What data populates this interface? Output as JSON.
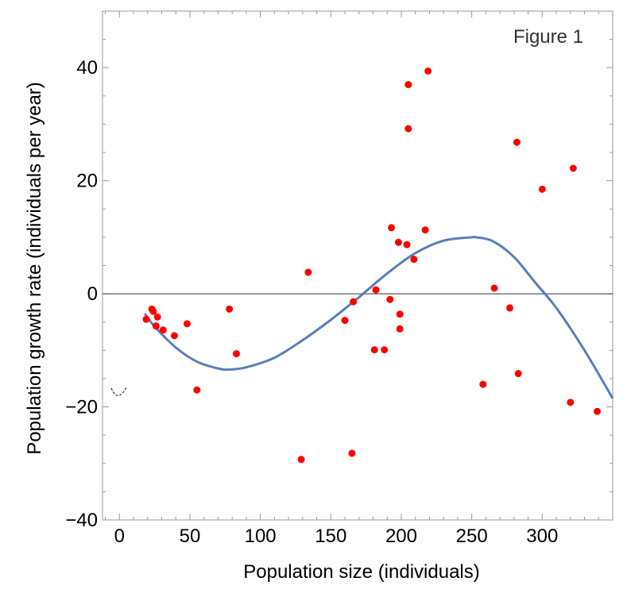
{
  "chart_data": {
    "type": "scatter",
    "annotation": "Figure 1",
    "xlabel": "Population size (individuals)",
    "ylabel": "Population growth rate (individuals per year)",
    "xlim": [
      -12,
      350
    ],
    "ylim": [
      -40,
      50
    ],
    "x_ticks": [
      0,
      50,
      100,
      150,
      200,
      250,
      300
    ],
    "y_ticks": [
      -40,
      -20,
      0,
      20,
      40
    ],
    "x_tick_labels": [
      "0",
      "50",
      "100",
      "150",
      "200",
      "250",
      "300"
    ],
    "y_tick_labels": [
      "−40",
      "−20",
      "0",
      "20",
      "40"
    ],
    "points": [
      {
        "x": 19,
        "y": -4.5
      },
      {
        "x": 23,
        "y": -2.7
      },
      {
        "x": 24,
        "y": -3.1
      },
      {
        "x": 26,
        "y": -5.7
      },
      {
        "x": 27,
        "y": -4.1
      },
      {
        "x": 31,
        "y": -6.4
      },
      {
        "x": 39,
        "y": -7.4
      },
      {
        "x": 48,
        "y": -5.3
      },
      {
        "x": 55,
        "y": -17
      },
      {
        "x": 78,
        "y": -2.7
      },
      {
        "x": 83,
        "y": -10.6
      },
      {
        "x": 129,
        "y": -29.3
      },
      {
        "x": 134,
        "y": 3.8
      },
      {
        "x": 160,
        "y": -4.7
      },
      {
        "x": 165,
        "y": -28.2
      },
      {
        "x": 166,
        "y": -1.4
      },
      {
        "x": 181,
        "y": -9.9
      },
      {
        "x": 182,
        "y": 0.7
      },
      {
        "x": 188,
        "y": -9.9
      },
      {
        "x": 192,
        "y": -1.0
      },
      {
        "x": 193,
        "y": 11.7
      },
      {
        "x": 198,
        "y": 9.1
      },
      {
        "x": 199,
        "y": -3.6
      },
      {
        "x": 199,
        "y": -6.2
      },
      {
        "x": 204,
        "y": 8.7
      },
      {
        "x": 205,
        "y": 29.2
      },
      {
        "x": 205,
        "y": 37.0
      },
      {
        "x": 209,
        "y": 6.1
      },
      {
        "x": 217,
        "y": 11.3
      },
      {
        "x": 219,
        "y": 39.4
      },
      {
        "x": 258,
        "y": -16.0
      },
      {
        "x": 266,
        "y": 1.0
      },
      {
        "x": 277,
        "y": -2.5
      },
      {
        "x": 282,
        "y": 26.8
      },
      {
        "x": 283,
        "y": -14.1
      },
      {
        "x": 300,
        "y": 18.5
      },
      {
        "x": 320,
        "y": -19.2
      },
      {
        "x": 322,
        "y": 22.2
      },
      {
        "x": 339,
        "y": -20.8
      }
    ],
    "fit_curve": {
      "x": [
        18,
        25,
        40,
        55,
        70,
        78,
        90,
        110,
        130,
        150,
        170,
        190,
        210,
        230,
        250,
        253,
        265,
        280,
        295,
        310,
        330,
        350
      ],
      "y": [
        -3.5,
        -5.8,
        -9.5,
        -12.0,
        -13.2,
        -13.4,
        -13.0,
        -11.3,
        -8.2,
        -4.6,
        -0.6,
        3.6,
        7.2,
        9.4,
        10.0,
        10.0,
        9.3,
        6.5,
        2.0,
        -2.5,
        -10.0,
        -18.5
      ]
    },
    "point_color": "#ff0000",
    "curve_color": "#5a7fb7",
    "grid": false
  }
}
